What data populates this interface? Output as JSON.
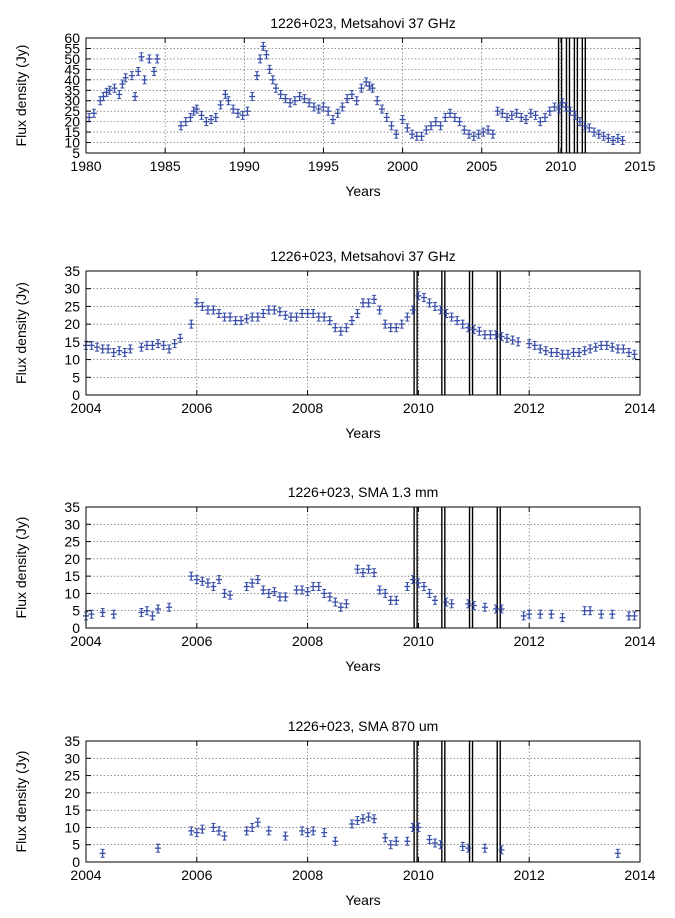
{
  "chart_data": [
    {
      "type": "scatter",
      "title": "1226+023, Metsahovi 37 GHz",
      "xlabel": "Years",
      "ylabel": "Flux density (Jy)",
      "xlim": [
        1980,
        2015
      ],
      "ylim": [
        5,
        60
      ],
      "xticks": [
        1980,
        1985,
        1990,
        1995,
        2000,
        2005,
        2010,
        2015
      ],
      "yticks": [
        5,
        10,
        15,
        20,
        25,
        30,
        35,
        40,
        45,
        50,
        55,
        60
      ],
      "grid": true,
      "marker_color": "#3a4fa8",
      "vertical_lines": [
        2009.95,
        2010.45,
        2010.95,
        2011.45
      ],
      "x": [
        1980.2,
        1980.5,
        1980.9,
        1981.1,
        1981.3,
        1981.5,
        1981.8,
        1982.1,
        1982.3,
        1982.5,
        1982.9,
        1983.1,
        1983.3,
        1983.5,
        1983.7,
        1984.0,
        1984.3,
        1984.5,
        1986.0,
        1986.3,
        1986.6,
        1986.8,
        1987.0,
        1987.3,
        1987.6,
        1987.9,
        1988.2,
        1988.5,
        1988.8,
        1989.0,
        1989.3,
        1989.6,
        1989.9,
        1990.2,
        1990.5,
        1990.8,
        1991.0,
        1991.2,
        1991.4,
        1991.6,
        1991.8,
        1992.0,
        1992.3,
        1992.6,
        1992.9,
        1993.2,
        1993.5,
        1993.8,
        1994.1,
        1994.4,
        1994.7,
        1995.0,
        1995.3,
        1995.6,
        1995.9,
        1996.2,
        1996.5,
        1996.8,
        1997.1,
        1997.4,
        1997.7,
        1997.9,
        1998.1,
        1998.4,
        1998.7,
        1999.0,
        1999.3,
        1999.6,
        2000.0,
        2000.3,
        2000.6,
        2000.9,
        2001.2,
        2001.5,
        2001.8,
        2002.1,
        2002.4,
        2002.7,
        2003.0,
        2003.3,
        2003.6,
        2003.9,
        2004.2,
        2004.5,
        2004.8,
        2005.1,
        2005.4,
        2005.7,
        2006.0,
        2006.3,
        2006.6,
        2006.9,
        2007.2,
        2007.5,
        2007.8,
        2008.1,
        2008.4,
        2008.7,
        2009.0,
        2009.3,
        2009.6,
        2009.9,
        2010.1,
        2010.3,
        2010.6,
        2010.9,
        2011.2,
        2011.5,
        2011.8,
        2012.1,
        2012.4,
        2012.7,
        2013.0,
        2013.3,
        2013.6,
        2013.9
      ],
      "y": [
        22,
        24,
        30,
        32,
        34,
        35,
        36,
        33,
        38,
        41,
        42,
        32,
        44,
        51,
        40,
        50,
        44,
        50,
        18,
        20,
        22,
        25,
        26,
        23,
        20,
        21,
        22,
        28,
        33,
        30,
        26,
        24,
        23,
        25,
        32,
        42,
        50,
        56,
        52,
        45,
        40,
        36,
        33,
        31,
        29,
        30,
        32,
        31,
        29,
        27,
        26,
        27,
        25,
        21,
        24,
        27,
        31,
        33,
        30,
        36,
        39,
        37,
        36,
        30,
        26,
        22,
        18,
        14,
        21,
        17,
        14,
        13,
        13,
        16,
        18,
        20,
        18,
        22,
        24,
        22,
        20,
        16,
        14,
        13,
        14,
        15,
        16,
        14,
        25,
        24,
        22,
        23,
        24,
        22,
        21,
        24,
        23,
        20,
        22,
        25,
        27,
        26,
        29,
        27,
        25,
        23,
        20,
        18,
        17,
        15,
        14,
        13,
        12,
        11,
        12,
        11
      ]
    },
    {
      "type": "scatter",
      "title": "1226+023, Metsahovi 37 GHz",
      "xlabel": "Years",
      "ylabel": "Flux density (Jy)",
      "xlim": [
        2004,
        2014
      ],
      "ylim": [
        0,
        35
      ],
      "xticks": [
        2004,
        2006,
        2008,
        2010,
        2012,
        2014
      ],
      "yticks": [
        0,
        5,
        10,
        15,
        20,
        25,
        30,
        35
      ],
      "grid": true,
      "marker_color": "#3a4fa8",
      "vertical_lines": [
        2009.95,
        2010.45,
        2010.95,
        2011.45
      ],
      "x": [
        2004.0,
        2004.1,
        2004.2,
        2004.3,
        2004.4,
        2004.5,
        2004.6,
        2004.7,
        2004.8,
        2005.0,
        2005.1,
        2005.2,
        2005.3,
        2005.4,
        2005.5,
        2005.6,
        2005.7,
        2005.9,
        2006.0,
        2006.1,
        2006.2,
        2006.3,
        2006.4,
        2006.5,
        2006.6,
        2006.7,
        2006.8,
        2006.9,
        2007.0,
        2007.1,
        2007.2,
        2007.3,
        2007.4,
        2007.5,
        2007.6,
        2007.7,
        2007.8,
        2007.9,
        2008.0,
        2008.1,
        2008.2,
        2008.3,
        2008.4,
        2008.5,
        2008.6,
        2008.7,
        2008.8,
        2008.9,
        2009.0,
        2009.1,
        2009.2,
        2009.3,
        2009.4,
        2009.5,
        2009.6,
        2009.7,
        2009.8,
        2009.9,
        2010.0,
        2010.1,
        2010.2,
        2010.3,
        2010.4,
        2010.5,
        2010.6,
        2010.7,
        2010.8,
        2010.9,
        2011.0,
        2011.1,
        2011.2,
        2011.3,
        2011.4,
        2011.5,
        2011.6,
        2011.7,
        2011.8,
        2012.0,
        2012.1,
        2012.2,
        2012.3,
        2012.4,
        2012.5,
        2012.6,
        2012.7,
        2012.8,
        2012.9,
        2013.0,
        2013.1,
        2013.2,
        2013.3,
        2013.4,
        2013.5,
        2013.6,
        2013.7,
        2013.8,
        2013.9
      ],
      "y": [
        14,
        14,
        13.5,
        13,
        13,
        12,
        12.5,
        12,
        13,
        13.5,
        14,
        14,
        14.5,
        14,
        13,
        14.5,
        16,
        20,
        26,
        25,
        24,
        24,
        23,
        22,
        22,
        21,
        21,
        21.5,
        22,
        22,
        23,
        24,
        24,
        23.5,
        22.5,
        22,
        22,
        23,
        23,
        23,
        22,
        22,
        21,
        19,
        18,
        19,
        21,
        23,
        26,
        26,
        27,
        24,
        20,
        19,
        19,
        20,
        22,
        24,
        28,
        27.5,
        26,
        25,
        24,
        23,
        22,
        21,
        20,
        19,
        18.5,
        18,
        17,
        17,
        17,
        16.5,
        16,
        15.5,
        15,
        14.5,
        14,
        13,
        12.5,
        12,
        12,
        11.5,
        11.5,
        12,
        12,
        12.5,
        13,
        13.5,
        14,
        14,
        13.5,
        13,
        13,
        12,
        11.5
      ]
    },
    {
      "type": "scatter",
      "title": "1226+023, SMA 1.3 mm",
      "xlabel": "Years",
      "ylabel": "Flux density (Jy)",
      "xlim": [
        2004,
        2014
      ],
      "ylim": [
        0,
        35
      ],
      "xticks": [
        2004,
        2006,
        2008,
        2010,
        2012,
        2014
      ],
      "yticks": [
        0,
        5,
        10,
        15,
        20,
        25,
        30,
        35
      ],
      "grid": true,
      "marker_color": "#3a4fa8",
      "vertical_lines": [
        2009.95,
        2010.45,
        2010.95,
        2011.45
      ],
      "x": [
        2004.0,
        2004.1,
        2004.3,
        2004.5,
        2005.0,
        2005.1,
        2005.2,
        2005.3,
        2005.5,
        2005.9,
        2006.0,
        2006.1,
        2006.2,
        2006.3,
        2006.4,
        2006.5,
        2006.6,
        2006.9,
        2007.0,
        2007.1,
        2007.2,
        2007.3,
        2007.4,
        2007.5,
        2007.6,
        2007.8,
        2007.9,
        2008.0,
        2008.1,
        2008.2,
        2008.3,
        2008.4,
        2008.5,
        2008.6,
        2008.7,
        2008.9,
        2009.0,
        2009.1,
        2009.2,
        2009.3,
        2009.4,
        2009.5,
        2009.6,
        2009.8,
        2009.9,
        2010.0,
        2010.1,
        2010.2,
        2010.3,
        2010.5,
        2010.6,
        2010.9,
        2011.0,
        2011.2,
        2011.4,
        2011.5,
        2011.9,
        2012.0,
        2012.2,
        2012.4,
        2012.6,
        2013.0,
        2013.1,
        2013.3,
        2013.5,
        2013.8,
        2013.9
      ],
      "y": [
        3.5,
        4,
        4.5,
        4,
        4.5,
        5,
        3.5,
        5.5,
        6,
        15,
        14,
        13.5,
        13,
        12,
        14,
        10,
        9.5,
        12,
        13,
        14,
        11,
        10,
        10.5,
        9,
        9,
        11,
        11,
        10.5,
        12,
        12,
        10,
        9,
        7.5,
        6,
        7,
        17,
        16,
        17,
        16,
        11,
        10,
        8,
        8,
        12,
        14,
        13,
        12,
        10,
        8,
        7.5,
        7,
        7,
        6.5,
        6,
        5.5,
        5.5,
        3.5,
        4,
        4,
        4,
        3,
        5,
        5,
        4,
        4,
        3.5,
        3.5
      ]
    },
    {
      "type": "scatter",
      "title": "1226+023, SMA 870 um",
      "xlabel": "Years",
      "ylabel": "Flux density (Jy)",
      "xlim": [
        2004,
        2014
      ],
      "ylim": [
        0,
        35
      ],
      "xticks": [
        2004,
        2006,
        2008,
        2010,
        2012,
        2014
      ],
      "yticks": [
        0,
        5,
        10,
        15,
        20,
        25,
        30,
        35
      ],
      "grid": true,
      "marker_color": "#3a4fa8",
      "vertical_lines": [
        2009.95,
        2010.45,
        2010.95,
        2011.45
      ],
      "x": [
        2004.3,
        2005.3,
        2005.9,
        2006.0,
        2006.1,
        2006.3,
        2006.4,
        2006.5,
        2006.9,
        2007.0,
        2007.1,
        2007.3,
        2007.6,
        2007.9,
        2008.0,
        2008.1,
        2008.3,
        2008.5,
        2008.8,
        2008.9,
        2009.0,
        2009.1,
        2009.2,
        2009.4,
        2009.5,
        2009.6,
        2009.8,
        2009.9,
        2010.0,
        2010.2,
        2010.3,
        2010.4,
        2010.8,
        2010.9,
        2011.2,
        2011.5,
        2013.6
      ],
      "y": [
        2.5,
        4,
        9,
        8.5,
        9.5,
        10,
        9,
        7.5,
        9,
        10,
        11.5,
        9,
        7.5,
        9,
        8.5,
        9,
        8.5,
        6,
        11,
        12,
        12.5,
        13,
        12.5,
        7,
        5,
        6,
        6,
        10,
        10,
        6.5,
        5.5,
        5,
        4.5,
        4,
        4,
        3.5,
        2.5
      ]
    }
  ]
}
